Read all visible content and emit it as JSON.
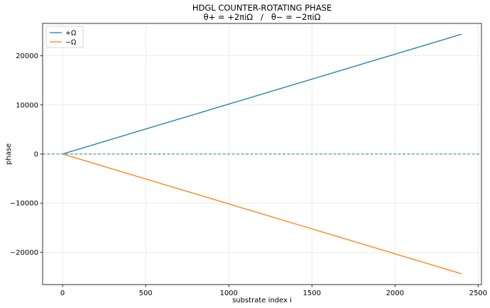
{
  "chart_data": {
    "type": "line",
    "title": "HDGL COUNTER-ROTATING PHASE",
    "subtitle": "θ+ = +2πiΩ   /   θ− = −2πiΩ",
    "xlabel": "substrate index i",
    "ylabel": "phase",
    "xlim": [
      -120,
      2520
    ],
    "ylim": [
      -26600,
      26600
    ],
    "xticks": [
      0,
      500,
      1000,
      1500,
      2000,
      2500
    ],
    "xtick_labels": [
      "0",
      "500",
      "1000",
      "1500",
      "2000",
      "2500"
    ],
    "yticks": [
      -20000,
      -10000,
      0,
      10000,
      20000
    ],
    "ytick_labels": [
      "−20000",
      "−10000",
      "0",
      "10000",
      "20000"
    ],
    "grid": true,
    "legend_position": "top-left",
    "series": [
      {
        "name": "+Ω",
        "color": "#1f77b4",
        "x": [
          0,
          2400
        ],
        "y": [
          0,
          24400
        ]
      },
      {
        "name": "−Ω",
        "color": "#ff7f0e",
        "x": [
          0,
          2400
        ],
        "y": [
          0,
          -24400
        ]
      }
    ],
    "reference_line": {
      "y": 0,
      "style": "dashed",
      "color": "#1f77b4"
    }
  }
}
